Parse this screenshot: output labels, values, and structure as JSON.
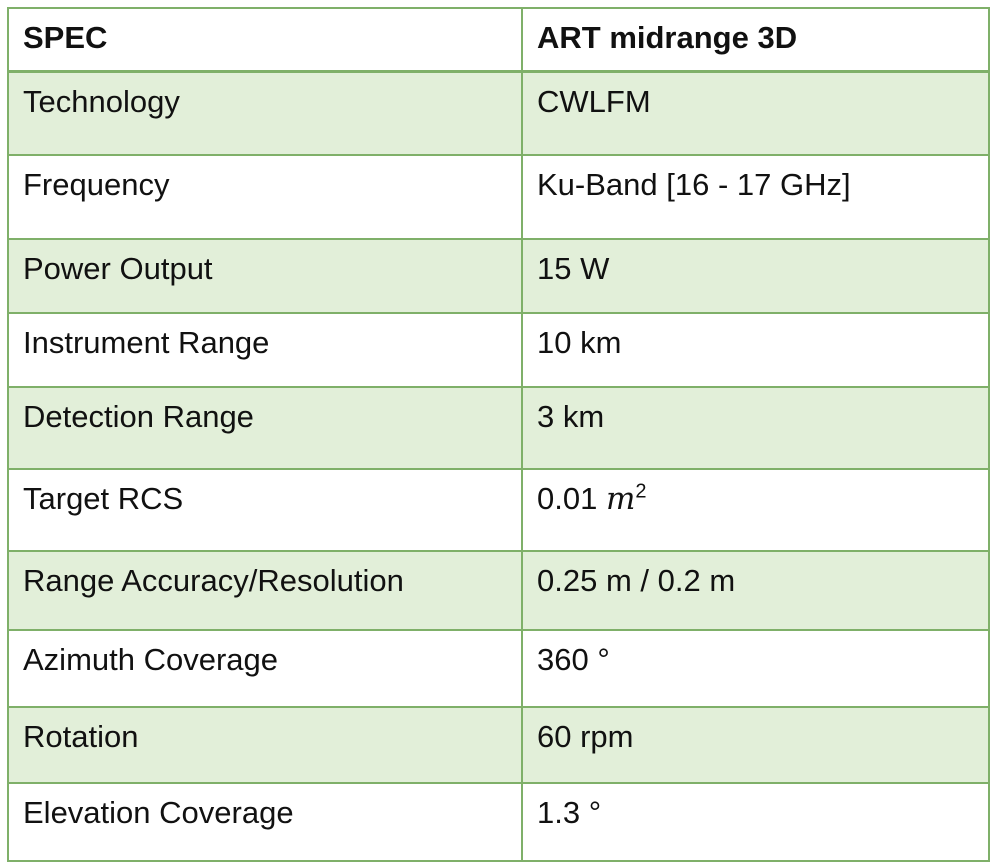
{
  "header": {
    "spec": "SPEC",
    "product": "ART midrange  3D"
  },
  "rows": [
    {
      "spec": "Technology",
      "value": "CWLFM"
    },
    {
      "spec": "Frequency",
      "value": "Ku-Band [16 - 17 GHz]"
    },
    {
      "spec": "Power Output",
      "value": "15 W"
    },
    {
      "spec": "Instrument Range",
      "value": "10 km"
    },
    {
      "spec": "Detection Range",
      "value": "3 km"
    },
    {
      "spec": "Target RCS",
      "value": "0.01",
      "unit": "m",
      "unit_exp": "2"
    },
    {
      "spec": "Range Accuracy/Resolution",
      "value": "0.25 m / 0.2 m"
    },
    {
      "spec": "Azimuth Coverage",
      "value": "360 °"
    },
    {
      "spec": "Rotation",
      "value": "60 rpm"
    },
    {
      "spec": "Elevation Coverage",
      "value": "1.3 °"
    }
  ],
  "colors": {
    "border": "#7fb069",
    "shaded_row": "#e2efd9",
    "plain_row": "#ffffff"
  }
}
